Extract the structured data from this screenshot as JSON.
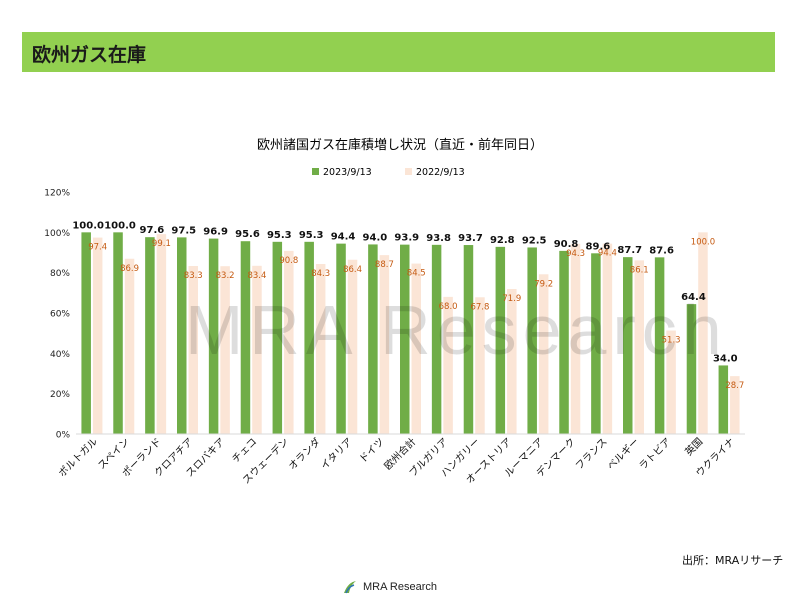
{
  "header": {
    "title": "欧州ガス在庫"
  },
  "watermark": "MRA Research",
  "source": "出所：MRAリサーチ",
  "footer": {
    "logo_text": "MRA Research"
  },
  "colors": {
    "series_2023": "#70ad47",
    "series_2022": "#fbe5d6",
    "label_2022": "#c55a11",
    "header_bg": "#92d050"
  },
  "chart_data": {
    "type": "bar",
    "title": "欧州諸国ガス在庫積増し状況（直近・前年同日）",
    "xlabel": "",
    "ylabel": "",
    "ylim": [
      0,
      120
    ],
    "yticks": [
      "0%",
      "20%",
      "40%",
      "60%",
      "80%",
      "100%",
      "120%"
    ],
    "grid": false,
    "legend": "top-center",
    "categories": [
      "ポルトガル",
      "スペイン",
      "ポーランド",
      "クロアチア",
      "スロバキア",
      "チェコ",
      "スウェーデン",
      "オランダ",
      "イタリア",
      "ドイツ",
      "欧州合計",
      "ブルガリア",
      "ハンガリー",
      "オーストリア",
      "ルーマニア",
      "デンマーク",
      "フランス",
      "ベルギー",
      "ラトビア",
      "英国",
      "ウクライナ"
    ],
    "series": [
      {
        "name": "2023/9/13",
        "values": [
          100.0,
          100.0,
          97.6,
          97.5,
          96.9,
          95.6,
          95.3,
          95.3,
          94.4,
          94.0,
          93.9,
          93.8,
          93.7,
          92.8,
          92.5,
          90.8,
          89.6,
          87.7,
          87.6,
          64.4,
          34.0
        ]
      },
      {
        "name": "2022/9/13",
        "values": [
          97.4,
          86.9,
          99.1,
          83.3,
          83.2,
          83.4,
          90.8,
          84.3,
          86.4,
          88.7,
          84.5,
          68.0,
          67.8,
          71.9,
          79.2,
          94.3,
          94.4,
          86.1,
          51.3,
          100.0,
          28.7
        ]
      }
    ]
  }
}
